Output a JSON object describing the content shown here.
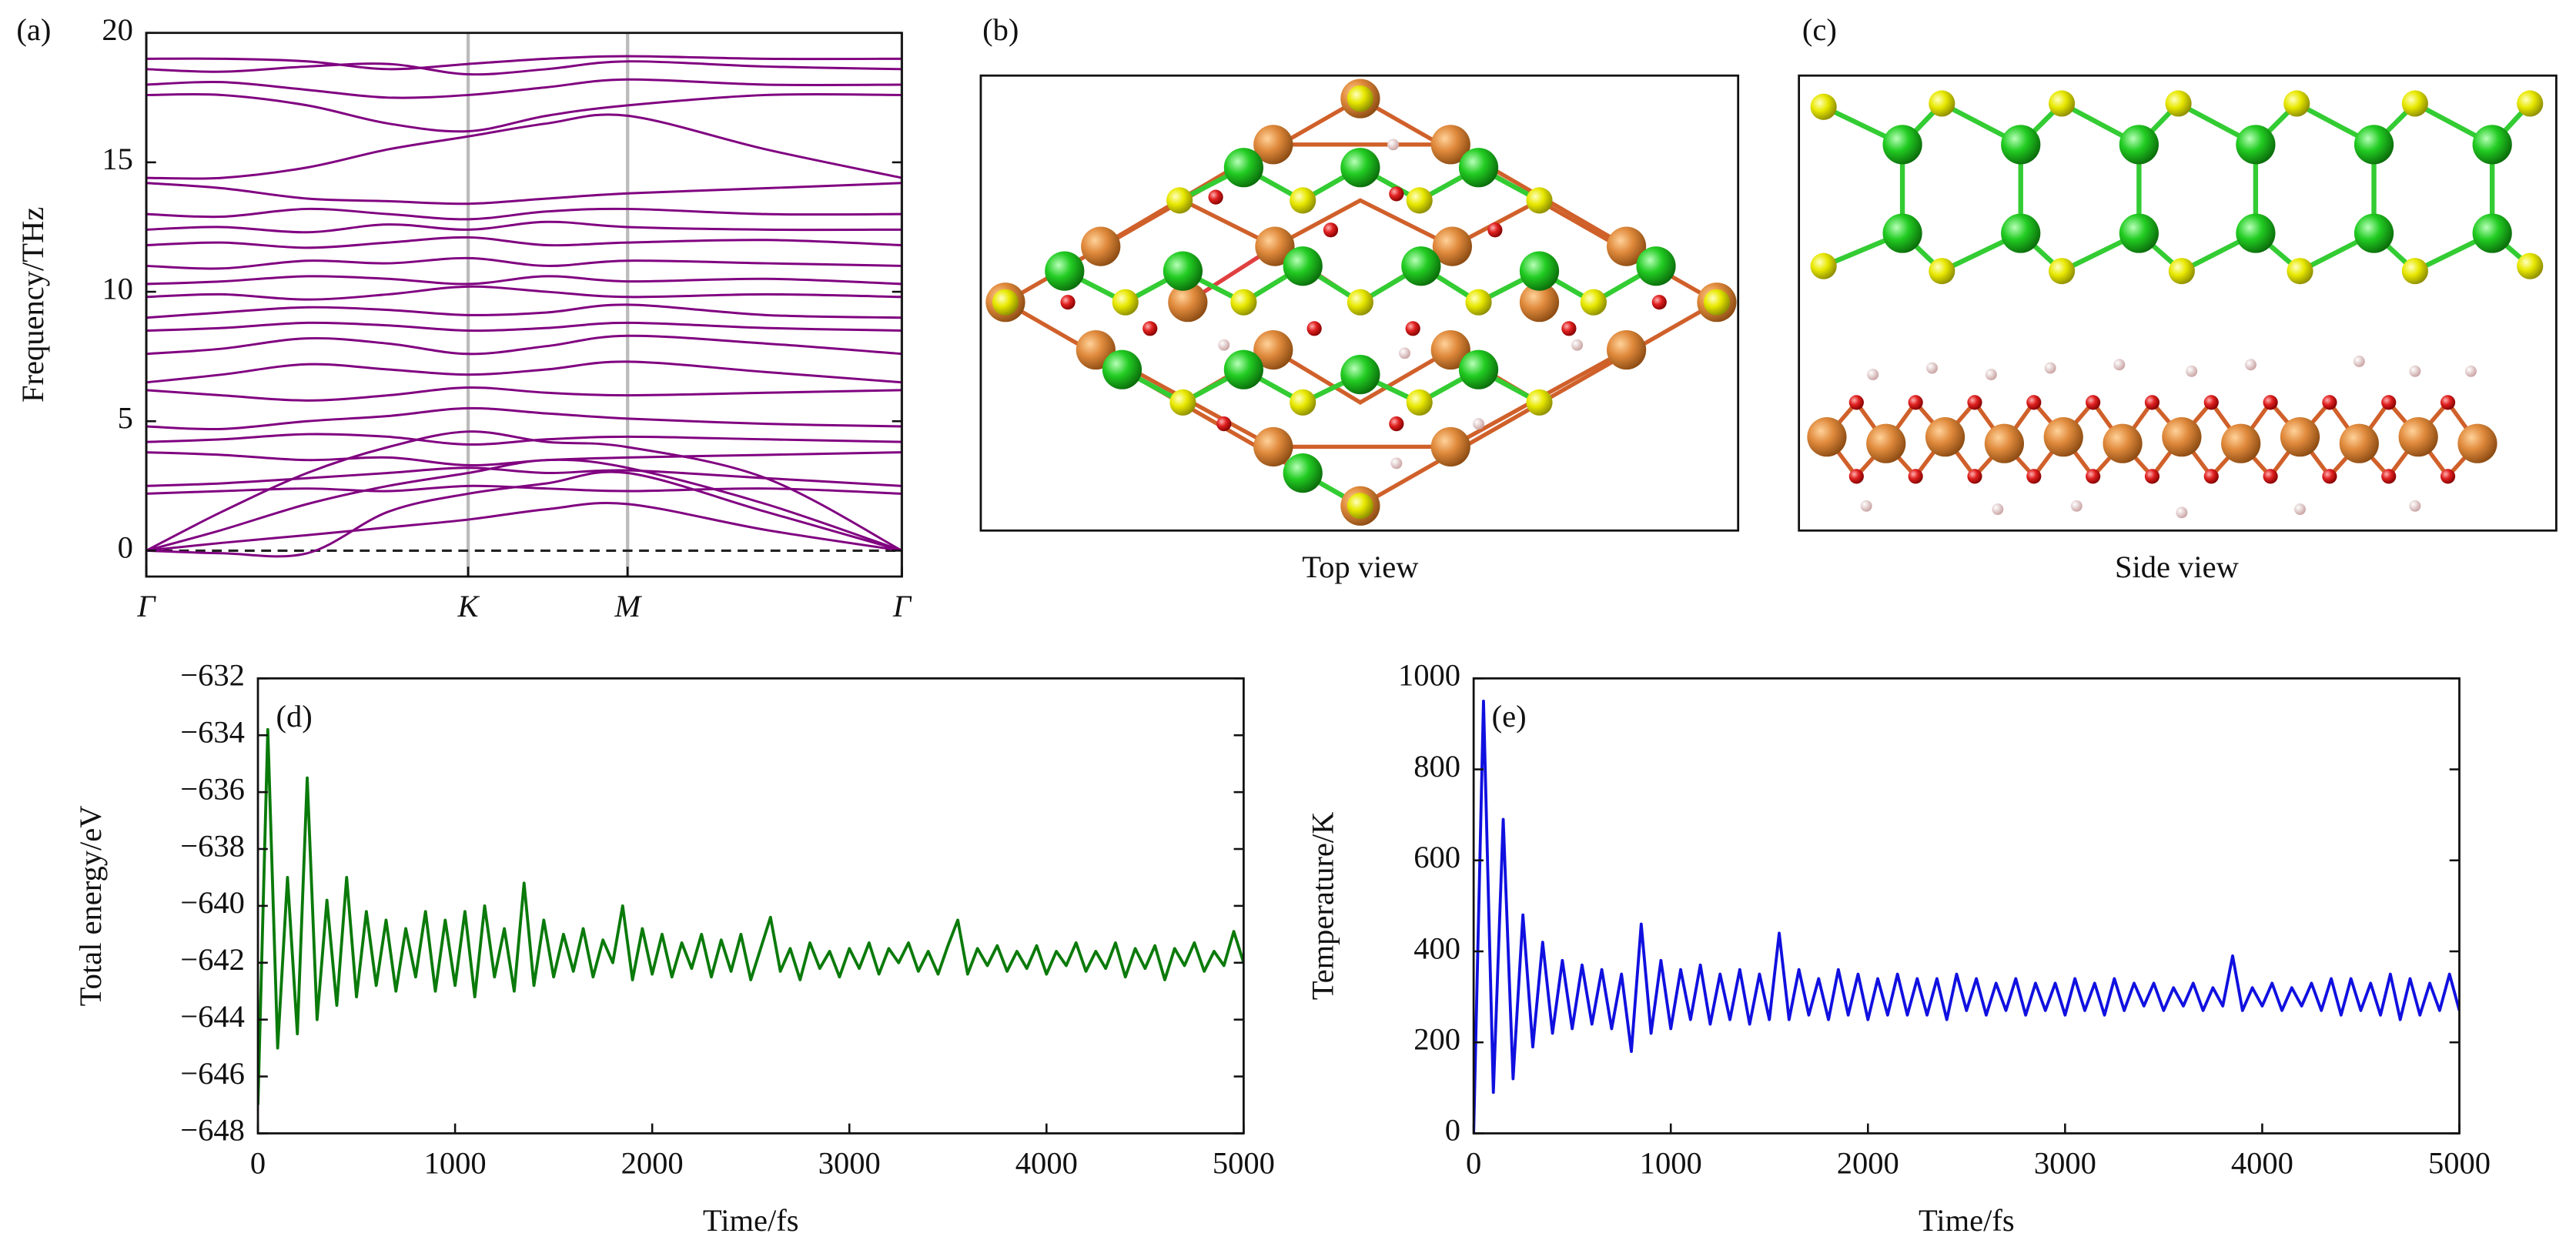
{
  "chart_data": [
    {
      "type": "line",
      "panel_label": "(a)",
      "ylabel": "Frequency/THz",
      "color": "#800080",
      "x": [
        0,
        0.1,
        0.213,
        0.32,
        0.426,
        0.53,
        0.637,
        0.82,
        1
      ],
      "xlim": [
        0,
        1
      ],
      "xticks": [
        {
          "value": 0,
          "label": "Γ"
        },
        {
          "value": 0.426,
          "label": "K"
        },
        {
          "value": 0.637,
          "label": "M"
        },
        {
          "value": 1,
          "label": "Γ"
        }
      ],
      "xgrid": true,
      "grid_color": "#bbbbbb",
      "reference_line": 0,
      "ylim": [
        -1,
        20
      ],
      "yticks": [
        0,
        5,
        10,
        15,
        20
      ],
      "series": [
        {
          "values": [
            0,
            0.3,
            0.6,
            0.9,
            1.2,
            1.6,
            1.8,
            0.8,
            0
          ]
        },
        {
          "values": [
            0,
            -0.1,
            -0.1,
            1.5,
            2.2,
            2.6,
            3.0,
            1.5,
            0
          ]
        },
        {
          "values": [
            0,
            0.8,
            1.8,
            2.5,
            3.0,
            3.5,
            3.2,
            1.8,
            0
          ]
        },
        {
          "values": [
            0,
            1.5,
            3.0,
            4.0,
            4.6,
            4.2,
            4.0,
            2.8,
            0
          ]
        },
        {
          "values": [
            2.2,
            2.3,
            2.4,
            2.3,
            2.5,
            2.4,
            2.3,
            2.4,
            2.2
          ]
        },
        {
          "values": [
            2.5,
            2.6,
            2.8,
            3.0,
            3.2,
            3.0,
            3.1,
            2.8,
            2.5
          ]
        },
        {
          "values": [
            3.8,
            3.7,
            3.5,
            3.6,
            3.3,
            3.5,
            3.6,
            3.7,
            3.8
          ]
        },
        {
          "values": [
            4.2,
            4.3,
            4.5,
            4.4,
            4.1,
            4.3,
            4.4,
            4.3,
            4.2
          ]
        },
        {
          "values": [
            4.8,
            4.7,
            5.0,
            5.2,
            5.5,
            5.3,
            5.1,
            4.9,
            4.8
          ]
        },
        {
          "values": [
            6.2,
            6.0,
            5.8,
            6.0,
            6.3,
            6.1,
            6.0,
            6.1,
            6.2
          ]
        },
        {
          "values": [
            6.5,
            6.8,
            7.2,
            7.0,
            6.8,
            7.0,
            7.3,
            6.9,
            6.5
          ]
        },
        {
          "values": [
            7.6,
            7.8,
            8.2,
            8.0,
            7.6,
            7.9,
            8.3,
            8.0,
            7.6
          ]
        },
        {
          "values": [
            8.5,
            8.6,
            8.8,
            8.7,
            8.5,
            8.6,
            8.8,
            8.6,
            8.5
          ]
        },
        {
          "values": [
            9.0,
            9.2,
            9.4,
            9.3,
            9.1,
            9.2,
            9.5,
            9.1,
            9.0
          ]
        },
        {
          "values": [
            9.8,
            9.9,
            9.7,
            9.9,
            10.2,
            10.0,
            9.8,
            9.9,
            9.8
          ]
        },
        {
          "values": [
            10.3,
            10.4,
            10.6,
            10.5,
            10.3,
            10.6,
            10.4,
            10.5,
            10.3
          ]
        },
        {
          "values": [
            11.0,
            10.9,
            11.2,
            11.1,
            11.3,
            11.0,
            11.2,
            11.1,
            11.0
          ]
        },
        {
          "values": [
            11.8,
            11.9,
            11.7,
            11.9,
            12.1,
            11.8,
            11.9,
            12.0,
            11.8
          ]
        },
        {
          "values": [
            12.4,
            12.5,
            12.3,
            12.6,
            12.4,
            12.7,
            12.5,
            12.4,
            12.4
          ]
        },
        {
          "values": [
            13.0,
            12.9,
            13.2,
            13.0,
            12.8,
            13.1,
            13.2,
            13.0,
            13.0
          ]
        },
        {
          "values": [
            14.2,
            14.0,
            13.6,
            13.5,
            13.4,
            13.6,
            13.8,
            14.0,
            14.2
          ]
        },
        {
          "values": [
            14.4,
            14.4,
            14.8,
            15.5,
            16.0,
            16.5,
            16.8,
            15.5,
            14.4
          ]
        },
        {
          "values": [
            17.6,
            17.6,
            17.2,
            16.5,
            16.2,
            16.8,
            17.2,
            17.6,
            17.6
          ]
        },
        {
          "values": [
            18.0,
            18.1,
            17.8,
            17.5,
            17.6,
            17.9,
            18.2,
            18.0,
            18.0
          ]
        },
        {
          "values": [
            18.6,
            18.5,
            18.7,
            18.8,
            18.4,
            18.6,
            18.9,
            18.7,
            18.6
          ]
        },
        {
          "values": [
            19.0,
            19.0,
            18.9,
            18.6,
            18.8,
            19.0,
            19.1,
            19.0,
            19.0
          ]
        }
      ]
    },
    {
      "type": "line",
      "panel_label": "(d)",
      "xlabel": "Time/fs",
      "ylabel": "Total energy/eV",
      "xlim": [
        0,
        5000
      ],
      "xticks": [
        0,
        1000,
        2000,
        3000,
        4000,
        5000
      ],
      "ylim": [
        -648,
        -632
      ],
      "yticks": [
        {
          "value": -648,
          "label": "−648"
        },
        {
          "value": -646,
          "label": "−646"
        },
        {
          "value": -644,
          "label": "−644"
        },
        {
          "value": -642,
          "label": "−642"
        },
        {
          "value": -640,
          "label": "−640"
        },
        {
          "value": -638,
          "label": "−638"
        },
        {
          "value": -636,
          "label": "−636"
        },
        {
          "value": -634,
          "label": "−634"
        },
        {
          "value": -632,
          "label": "−632"
        }
      ],
      "x": [
        0,
        50,
        100,
        150,
        200,
        250,
        300,
        350,
        400,
        450,
        500,
        550,
        600,
        650,
        700,
        750,
        800,
        850,
        900,
        950,
        1000,
        1050,
        1100,
        1150,
        1200,
        1250,
        1300,
        1350,
        1400,
        1450,
        1500,
        1550,
        1600,
        1650,
        1700,
        1750,
        1800,
        1850,
        1900,
        1950,
        2000,
        2050,
        2100,
        2150,
        2200,
        2250,
        2300,
        2350,
        2400,
        2450,
        2500,
        2550,
        2600,
        2650,
        2700,
        2750,
        2800,
        2850,
        2900,
        2950,
        3000,
        3050,
        3100,
        3150,
        3200,
        3250,
        3300,
        3350,
        3400,
        3450,
        3500,
        3550,
        3600,
        3650,
        3700,
        3750,
        3800,
        3850,
        3900,
        3950,
        4000,
        4050,
        4100,
        4150,
        4200,
        4250,
        4300,
        4350,
        4400,
        4450,
        4500,
        4550,
        4600,
        4650,
        4700,
        4750,
        4800,
        4850,
        4900,
        4950,
        5000
      ],
      "series": [
        {
          "color": "#0a7a0a",
          "values": [
            -647.0,
            -633.8,
            -645.0,
            -639.0,
            -644.5,
            -635.5,
            -644.0,
            -639.8,
            -643.5,
            -639.0,
            -643.2,
            -640.2,
            -642.8,
            -640.5,
            -643.0,
            -640.8,
            -642.5,
            -640.2,
            -643.0,
            -640.5,
            -642.8,
            -640.2,
            -643.2,
            -640.0,
            -642.5,
            -640.8,
            -643.0,
            -639.2,
            -642.8,
            -640.5,
            -642.5,
            -641.0,
            -642.3,
            -640.8,
            -642.5,
            -641.2,
            -642.0,
            -640.0,
            -642.6,
            -640.8,
            -642.4,
            -641.0,
            -642.5,
            -641.3,
            -642.2,
            -641.0,
            -642.5,
            -641.2,
            -642.3,
            -641.0,
            -642.6,
            -641.5,
            -640.4,
            -642.3,
            -641.5,
            -642.6,
            -641.3,
            -642.2,
            -641.6,
            -642.5,
            -641.5,
            -642.2,
            -641.3,
            -642.4,
            -641.5,
            -642.0,
            -641.3,
            -642.3,
            -641.6,
            -642.4,
            -641.4,
            -640.5,
            -642.4,
            -641.5,
            -642.1,
            -641.4,
            -642.3,
            -641.6,
            -642.2,
            -641.4,
            -642.4,
            -641.6,
            -642.1,
            -641.3,
            -642.3,
            -641.6,
            -642.2,
            -641.3,
            -642.5,
            -641.5,
            -642.2,
            -641.4,
            -642.6,
            -641.5,
            -642.1,
            -641.3,
            -642.3,
            -641.6,
            -642.1,
            -640.9,
            -642.0
          ]
        }
      ]
    },
    {
      "type": "line",
      "panel_label": "(e)",
      "xlabel": "Time/fs",
      "ylabel": "Temperature/K",
      "xlim": [
        0,
        5000
      ],
      "xticks": [
        0,
        1000,
        2000,
        3000,
        4000,
        5000
      ],
      "ylim": [
        0,
        1000
      ],
      "yticks": [
        0,
        200,
        400,
        600,
        800,
        1000
      ],
      "x": [
        0,
        50,
        100,
        150,
        200,
        250,
        300,
        350,
        400,
        450,
        500,
        550,
        600,
        650,
        700,
        750,
        800,
        850,
        900,
        950,
        1000,
        1050,
        1100,
        1150,
        1200,
        1250,
        1300,
        1350,
        1400,
        1450,
        1500,
        1550,
        1600,
        1650,
        1700,
        1750,
        1800,
        1850,
        1900,
        1950,
        2000,
        2050,
        2100,
        2150,
        2200,
        2250,
        2300,
        2350,
        2400,
        2450,
        2500,
        2550,
        2600,
        2650,
        2700,
        2750,
        2800,
        2850,
        2900,
        2950,
        3000,
        3050,
        3100,
        3150,
        3200,
        3250,
        3300,
        3350,
        3400,
        3450,
        3500,
        3550,
        3600,
        3650,
        3700,
        3750,
        3800,
        3850,
        3900,
        3950,
        4000,
        4050,
        4100,
        4150,
        4200,
        4250,
        4300,
        4350,
        4400,
        4450,
        4500,
        4550,
        4600,
        4650,
        4700,
        4750,
        4800,
        4850,
        4900,
        4950,
        5000
      ],
      "series": [
        {
          "color": "#1010e0",
          "values": [
            0,
            950,
            90,
            690,
            120,
            480,
            190,
            420,
            220,
            380,
            230,
            370,
            240,
            360,
            230,
            350,
            180,
            460,
            220,
            380,
            230,
            360,
            250,
            370,
            240,
            350,
            250,
            360,
            240,
            350,
            250,
            440,
            250,
            360,
            260,
            340,
            250,
            360,
            260,
            350,
            250,
            340,
            260,
            350,
            260,
            340,
            260,
            340,
            250,
            350,
            270,
            340,
            260,
            330,
            270,
            340,
            260,
            330,
            270,
            330,
            260,
            340,
            270,
            330,
            260,
            340,
            270,
            330,
            280,
            330,
            270,
            320,
            280,
            330,
            270,
            320,
            280,
            390,
            270,
            320,
            280,
            330,
            270,
            320,
            280,
            330,
            270,
            340,
            260,
            340,
            270,
            330,
            260,
            350,
            250,
            340,
            260,
            330,
            270,
            350,
            270
          ]
        }
      ]
    }
  ],
  "structure_views": [
    {
      "panel_label": "(b)",
      "caption": "Top view"
    },
    {
      "panel_label": "(c)",
      "caption": "Side view"
    }
  ]
}
